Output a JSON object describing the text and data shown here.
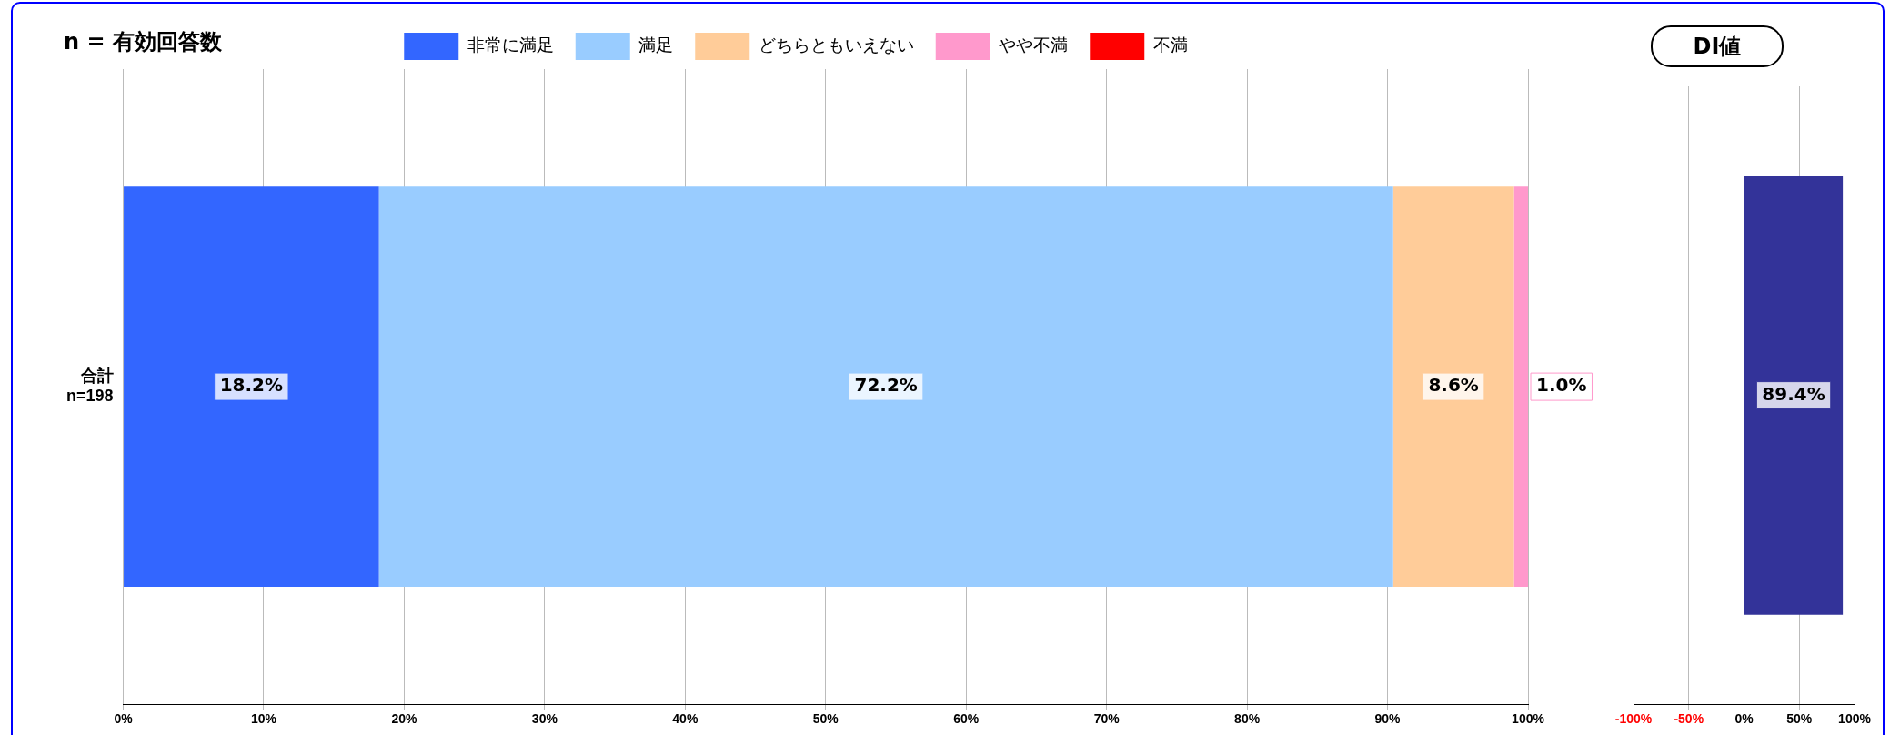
{
  "chart_data": [
    {
      "type": "bar",
      "orientation": "horizontal",
      "stacked": true,
      "title": "n = 有効回答数",
      "categories": [
        "合計\nn=198"
      ],
      "series": [
        {
          "name": "非常に満足",
          "color": "#3366ff",
          "values": [
            18.2
          ],
          "value_labels": [
            "18.2%"
          ]
        },
        {
          "name": "満足",
          "color": "#99ccff",
          "values": [
            72.2
          ],
          "value_labels": [
            "72.2%"
          ]
        },
        {
          "name": "どちらともいえない",
          "color": "#ffcc99",
          "values": [
            8.6
          ],
          "value_labels": [
            "8.6%"
          ]
        },
        {
          "name": "やや不満",
          "color": "#ff99cc",
          "values": [
            1.0
          ],
          "value_labels": [
            "1.0%"
          ]
        },
        {
          "name": "不満",
          "color": "#ff0000",
          "values": [
            0
          ],
          "value_labels": [
            null
          ]
        }
      ],
      "xlim": [
        0,
        100
      ],
      "xticks": [
        {
          "value": 0,
          "label": "0%"
        },
        {
          "value": 10,
          "label": "10%"
        },
        {
          "value": 20,
          "label": "20%"
        },
        {
          "value": 30,
          "label": "30%"
        },
        {
          "value": 40,
          "label": "40%"
        },
        {
          "value": 50,
          "label": "50%"
        },
        {
          "value": 60,
          "label": "60%"
        },
        {
          "value": 70,
          "label": "70%"
        },
        {
          "value": 80,
          "label": "80%"
        },
        {
          "value": 90,
          "label": "90%"
        },
        {
          "value": 100,
          "label": "100%"
        }
      ],
      "grid": "x",
      "legend": "top"
    },
    {
      "type": "bar",
      "orientation": "horizontal",
      "title": "DI値",
      "categories": [
        null
      ],
      "series": [
        {
          "color": "#333399",
          "values": [
            89.4
          ],
          "value_labels": [
            "89.4%"
          ]
        }
      ],
      "xlim": [
        -100,
        100
      ],
      "xticks": [
        {
          "value": -100,
          "label": "-100%"
        },
        {
          "value": -50,
          "label": "-50%"
        },
        {
          "value": 0,
          "label": "0%"
        },
        {
          "value": 50,
          "label": "50%"
        },
        {
          "value": 100,
          "label": "100%"
        }
      ],
      "grid": "x",
      "tick_labels": "x"
    }
  ]
}
